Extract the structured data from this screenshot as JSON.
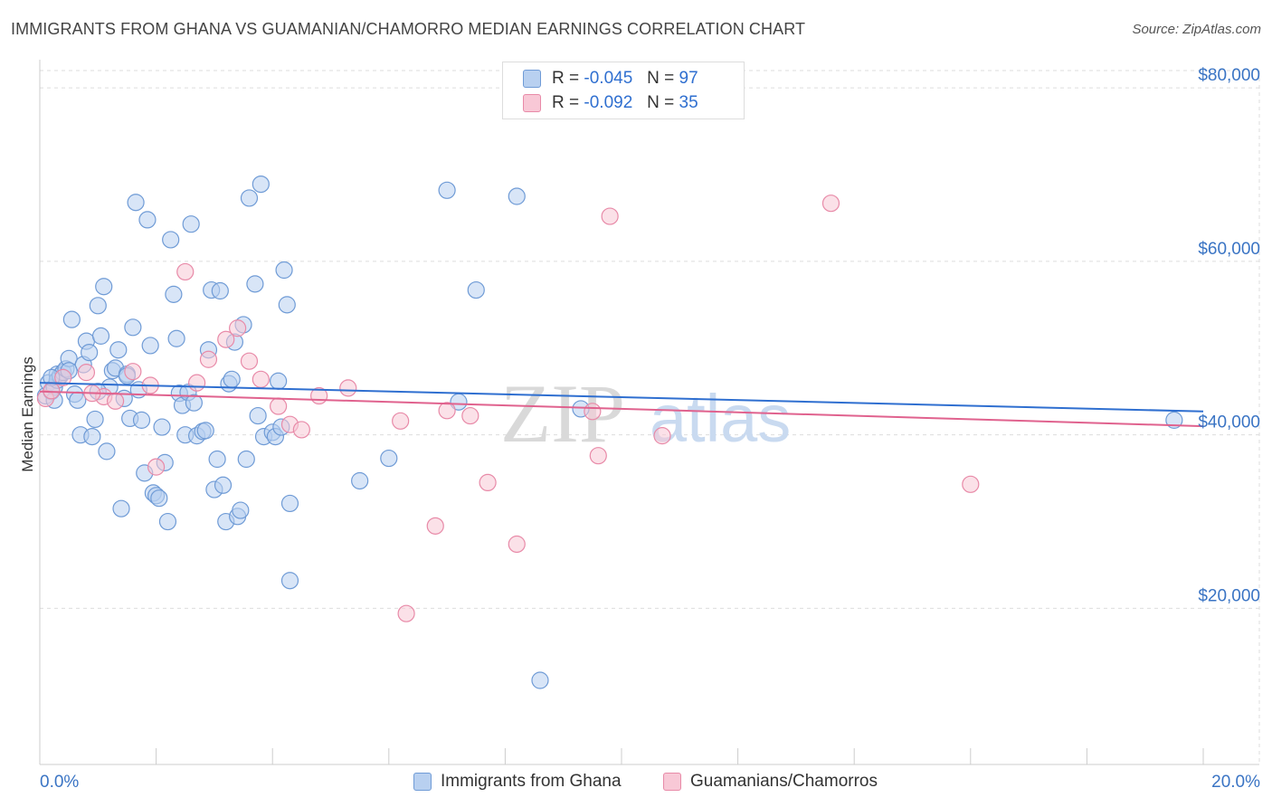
{
  "title": "IMMIGRANTS FROM GHANA VS GUAMANIAN/CHAMORRO MEDIAN EARNINGS CORRELATION CHART",
  "source": "Source: ZipAtlas.com",
  "watermark": {
    "zip": "ZIP",
    "atlas": "atlas"
  },
  "legend": {
    "rows": [
      {
        "r_label": "R =",
        "r_value": "-0.045",
        "n_label": "N =",
        "n_value": "97"
      },
      {
        "r_label": "R =",
        "r_value": "-0.092",
        "n_label": "N =",
        "n_value": "35"
      }
    ]
  },
  "colors": {
    "blue_fill": "#b8d0f0",
    "blue_stroke": "#6f9bd6",
    "blue_line": "#2f6fd0",
    "pink_fill": "#f8c8d6",
    "pink_stroke": "#e88aa8",
    "pink_line": "#e0628e",
    "grid": "#dddddd",
    "axis_text": "#3a74c4"
  },
  "chart_data": {
    "type": "scatter",
    "title": "IMMIGRANTS FROM GHANA VS GUAMANIAN/CHAMORRO MEDIAN EARNINGS CORRELATION CHART",
    "xlabel": "",
    "ylabel": "Median Earnings",
    "xlim": [
      0,
      20
    ],
    "ylim": [
      2000,
      82000
    ],
    "x_tick_labels": [
      "0.0%",
      "20.0%"
    ],
    "y_ticks": [
      20000,
      40000,
      60000,
      80000
    ],
    "y_tick_labels": [
      "$20,000",
      "$40,000",
      "$60,000",
      "$80,000"
    ],
    "series": [
      {
        "name": "Immigrants from Ghana",
        "color": "#6f9bd6",
        "trend": {
          "x": [
            0,
            20
          ],
          "y": [
            46000,
            42700
          ]
        },
        "points": [
          [
            0.1,
            44500
          ],
          [
            0.15,
            46000
          ],
          [
            0.2,
            45000
          ],
          [
            0.25,
            45500
          ],
          [
            0.3,
            47000
          ],
          [
            0.3,
            46300
          ],
          [
            0.35,
            46800
          ],
          [
            0.4,
            47200
          ],
          [
            0.45,
            47600
          ],
          [
            0.5,
            48800
          ],
          [
            0.55,
            53300
          ],
          [
            0.6,
            44700
          ],
          [
            0.65,
            44000
          ],
          [
            0.7,
            40000
          ],
          [
            0.75,
            48100
          ],
          [
            0.8,
            50800
          ],
          [
            0.85,
            49500
          ],
          [
            0.9,
            39800
          ],
          [
            0.95,
            41800
          ],
          [
            1.0,
            54900
          ],
          [
            1.05,
            51400
          ],
          [
            1.1,
            57100
          ],
          [
            1.15,
            38100
          ],
          [
            1.2,
            45500
          ],
          [
            1.25,
            47400
          ],
          [
            1.3,
            47700
          ],
          [
            1.35,
            49800
          ],
          [
            1.4,
            31500
          ],
          [
            1.45,
            44200
          ],
          [
            1.5,
            47000
          ],
          [
            1.55,
            41900
          ],
          [
            1.6,
            52400
          ],
          [
            1.65,
            66800
          ],
          [
            1.7,
            45200
          ],
          [
            1.75,
            41700
          ],
          [
            1.8,
            35600
          ],
          [
            1.85,
            64800
          ],
          [
            1.9,
            50300
          ],
          [
            1.95,
            33300
          ],
          [
            2.0,
            33000
          ],
          [
            2.05,
            32700
          ],
          [
            2.1,
            40900
          ],
          [
            2.15,
            36800
          ],
          [
            2.2,
            30000
          ],
          [
            2.25,
            62500
          ],
          [
            2.3,
            56200
          ],
          [
            2.35,
            51100
          ],
          [
            2.4,
            44800
          ],
          [
            2.45,
            43400
          ],
          [
            2.5,
            40000
          ],
          [
            2.55,
            44900
          ],
          [
            2.6,
            64300
          ],
          [
            2.65,
            43700
          ],
          [
            2.7,
            39900
          ],
          [
            2.8,
            40400
          ],
          [
            2.85,
            40500
          ],
          [
            2.9,
            49800
          ],
          [
            2.95,
            56700
          ],
          [
            3.0,
            33700
          ],
          [
            3.05,
            37200
          ],
          [
            3.1,
            56600
          ],
          [
            3.15,
            34200
          ],
          [
            3.2,
            30000
          ],
          [
            3.25,
            45900
          ],
          [
            3.3,
            46400
          ],
          [
            3.35,
            50700
          ],
          [
            3.4,
            30600
          ],
          [
            3.45,
            31300
          ],
          [
            3.5,
            52700
          ],
          [
            3.55,
            37200
          ],
          [
            3.6,
            67300
          ],
          [
            3.7,
            57400
          ],
          [
            3.75,
            42200
          ],
          [
            3.8,
            68900
          ],
          [
            3.85,
            39800
          ],
          [
            4.0,
            40300
          ],
          [
            4.05,
            39800
          ],
          [
            4.1,
            46200
          ],
          [
            4.15,
            40900
          ],
          [
            4.2,
            59000
          ],
          [
            4.25,
            55000
          ],
          [
            4.3,
            32100
          ],
          [
            4.3,
            23200
          ],
          [
            5.5,
            34700
          ],
          [
            6.0,
            37300
          ],
          [
            7.0,
            68200
          ],
          [
            7.2,
            43800
          ],
          [
            7.5,
            56700
          ],
          [
            8.2,
            67500
          ],
          [
            8.6,
            11700
          ],
          [
            9.3,
            43000
          ],
          [
            19.5,
            41700
          ],
          [
            0.2,
            46600
          ],
          [
            0.25,
            44000
          ],
          [
            0.5,
            47400
          ],
          [
            1.0,
            45000
          ],
          [
            1.5,
            46800
          ]
        ]
      },
      {
        "name": "Guamanians/Chamorros",
        "color": "#e88aa8",
        "trend": {
          "x": [
            0,
            20
          ],
          "y": [
            45000,
            41000
          ]
        },
        "points": [
          [
            0.1,
            44200
          ],
          [
            0.2,
            45100
          ],
          [
            0.4,
            46600
          ],
          [
            0.8,
            47200
          ],
          [
            1.1,
            44400
          ],
          [
            1.3,
            43900
          ],
          [
            1.6,
            47300
          ],
          [
            1.9,
            45700
          ],
          [
            2.0,
            36300
          ],
          [
            2.5,
            58800
          ],
          [
            2.7,
            46000
          ],
          [
            2.9,
            48700
          ],
          [
            3.2,
            51000
          ],
          [
            3.4,
            52300
          ],
          [
            3.6,
            48500
          ],
          [
            3.8,
            46400
          ],
          [
            4.1,
            43300
          ],
          [
            4.3,
            41200
          ],
          [
            4.5,
            40600
          ],
          [
            4.8,
            44500
          ],
          [
            5.3,
            45400
          ],
          [
            6.2,
            41600
          ],
          [
            6.3,
            19400
          ],
          [
            6.8,
            29500
          ],
          [
            7.0,
            42800
          ],
          [
            7.4,
            42200
          ],
          [
            7.7,
            34500
          ],
          [
            8.2,
            27400
          ],
          [
            9.5,
            42700
          ],
          [
            9.6,
            37600
          ],
          [
            9.8,
            65200
          ],
          [
            10.7,
            39900
          ],
          [
            13.6,
            66700
          ],
          [
            16.0,
            34300
          ],
          [
            0.9,
            44800
          ]
        ]
      }
    ]
  },
  "bottom_legend": [
    {
      "label": "Immigrants from Ghana"
    },
    {
      "label": "Guamanians/Chamorros"
    }
  ]
}
